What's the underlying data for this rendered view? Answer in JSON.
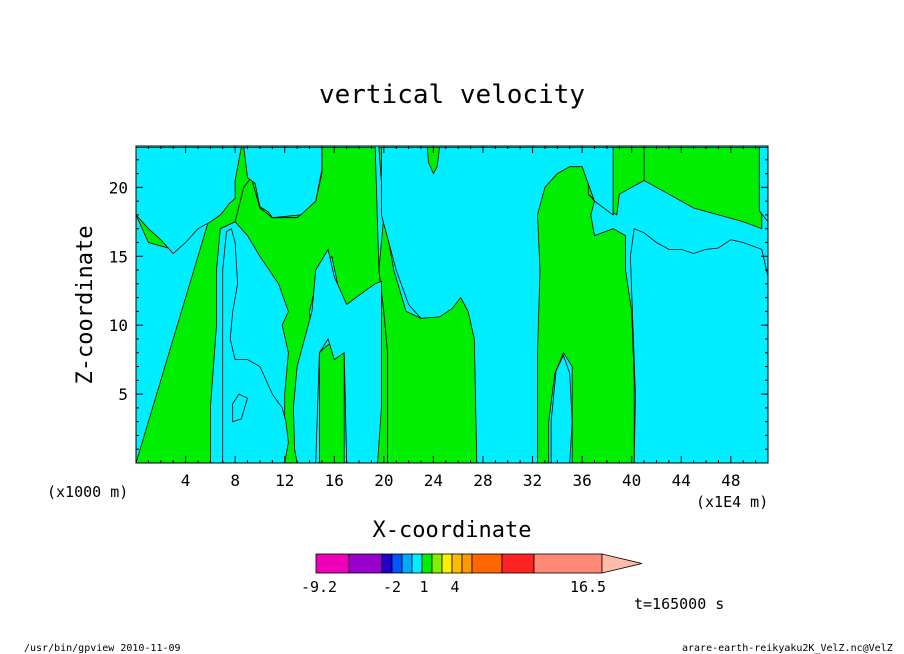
{
  "chart_data": {
    "type": "heatmap",
    "title": "vertical velocity",
    "xlabel": "X-coordinate",
    "ylabel": "Z-coordinate",
    "x_unit_left": "(x1000 m)",
    "x_unit_right": "(x1E4 m)",
    "xlim": [
      0,
      51
    ],
    "ylim": [
      0,
      23
    ],
    "xticks": [
      4,
      8,
      12,
      16,
      20,
      24,
      28,
      32,
      36,
      40,
      44,
      48
    ],
    "yticks": [
      5,
      10,
      15,
      20
    ],
    "grid": false,
    "colors": {
      "cyan": "#00eeff",
      "green": "#00ee00",
      "outline": "#000000"
    },
    "regions": [
      {
        "name": "green",
        "points": [
          [
            0,
            0
          ],
          [
            6,
            0
          ],
          [
            6,
            4
          ],
          [
            6.5,
            10
          ],
          [
            6.5,
            14
          ],
          [
            6.8,
            17
          ],
          [
            8,
            17.5
          ],
          [
            8.7,
            20
          ],
          [
            9.3,
            20.7
          ],
          [
            10,
            18.5
          ],
          [
            11,
            17.8
          ],
          [
            13,
            17.8
          ],
          [
            14.5,
            19
          ],
          [
            15,
            21
          ],
          [
            15,
            22.9
          ],
          [
            0,
            22.9
          ],
          [
            0,
            18
          ],
          [
            1,
            16
          ],
          [
            3,
            15.5
          ],
          [
            5,
            17
          ],
          [
            6,
            18
          ]
        ]
      },
      {
        "name": "green",
        "points": [
          [
            7,
            0
          ],
          [
            12,
            0
          ],
          [
            12,
            5
          ],
          [
            12.3,
            8
          ],
          [
            11.8,
            10
          ],
          [
            12.3,
            11
          ],
          [
            11.5,
            13
          ],
          [
            10,
            15
          ],
          [
            9,
            16.5
          ],
          [
            8.5,
            17
          ],
          [
            8,
            17.5
          ],
          [
            8.7,
            20
          ],
          [
            9.3,
            20.7
          ],
          [
            10,
            18.5
          ],
          [
            11,
            17.8
          ],
          [
            13,
            17.8
          ],
          [
            14.5,
            19
          ],
          [
            15,
            21
          ],
          [
            15,
            22.9
          ],
          [
            19.3,
            22.9
          ],
          [
            19.6,
            14
          ],
          [
            20,
            11
          ],
          [
            20.3,
            8
          ],
          [
            20.3,
            0
          ],
          [
            17,
            0
          ],
          [
            16.8,
            8
          ],
          [
            16.5,
            12
          ],
          [
            15.8,
            15
          ],
          [
            14.8,
            14
          ],
          [
            14,
            11
          ],
          [
            14.3,
            8
          ],
          [
            13.7,
            4
          ],
          [
            13,
            0
          ]
        ]
      },
      {
        "name": "green",
        "points": [
          [
            14.8,
            0
          ],
          [
            16.8,
            0
          ],
          [
            16.8,
            8
          ],
          [
            16.2,
            9
          ],
          [
            15.4,
            8.5
          ],
          [
            14.8,
            8
          ]
        ]
      },
      {
        "name": "green",
        "points": [
          [
            20.3,
            0
          ],
          [
            27.5,
            0
          ],
          [
            27.5,
            7
          ],
          [
            27.3,
            10
          ],
          [
            26.8,
            11
          ],
          [
            26.2,
            12
          ],
          [
            25.5,
            12.3
          ],
          [
            24.5,
            11
          ],
          [
            23,
            10.5
          ],
          [
            21.8,
            11
          ],
          [
            20.8,
            14
          ],
          [
            20,
            18
          ],
          [
            19.6,
            22.9
          ],
          [
            20.5,
            22.9
          ],
          [
            19.6,
            14
          ],
          [
            20,
            11
          ],
          [
            20.3,
            8
          ]
        ]
      },
      {
        "name": "green",
        "points": [
          [
            32.3,
            0
          ],
          [
            33.3,
            0
          ],
          [
            33.3,
            3
          ],
          [
            33.8,
            6.5
          ],
          [
            34.5,
            8
          ],
          [
            35.2,
            7
          ],
          [
            35.2,
            0
          ],
          [
            40.2,
            0
          ],
          [
            40.2,
            6
          ],
          [
            40,
            11
          ],
          [
            39.5,
            14
          ],
          [
            39.5,
            16.5
          ],
          [
            38.5,
            17
          ],
          [
            37,
            16.5
          ],
          [
            36.7,
            18
          ],
          [
            37,
            19
          ],
          [
            36.5,
            19.5
          ],
          [
            37,
            20
          ],
          [
            37,
            21
          ],
          [
            37.5,
            22.9
          ],
          [
            33.4,
            22.9
          ],
          [
            33.4,
            21.5
          ],
          [
            32.5,
            21
          ],
          [
            32.3,
            20
          ]
        ]
      },
      {
        "name": "green",
        "points": [
          [
            36.5,
            22.9
          ],
          [
            36.5,
            19.5
          ],
          [
            37.8,
            18.5
          ],
          [
            38.8,
            18
          ],
          [
            39,
            19.5
          ],
          [
            40,
            20
          ],
          [
            41,
            20.5
          ],
          [
            42,
            21
          ],
          [
            43,
            22.9
          ]
        ]
      },
      {
        "name": "green",
        "points": [
          [
            41,
            22.9
          ],
          [
            41,
            20.5
          ],
          [
            43,
            19.5
          ],
          [
            45,
            18.5
          ],
          [
            47,
            18
          ],
          [
            49,
            17.5
          ],
          [
            50.5,
            17
          ],
          [
            50.5,
            22.9
          ]
        ]
      },
      {
        "name": "cyan",
        "points": [
          [
            7,
            0
          ],
          [
            12,
            0
          ],
          [
            12.3,
            1.5
          ],
          [
            12.1,
            3
          ],
          [
            11.8,
            4
          ],
          [
            11,
            5
          ],
          [
            10.4,
            6.2
          ],
          [
            10,
            7
          ],
          [
            9,
            7.5
          ],
          [
            8,
            7.5
          ],
          [
            7.6,
            9
          ],
          [
            7.8,
            11
          ],
          [
            8.2,
            13
          ],
          [
            8,
            16
          ],
          [
            7.7,
            17
          ],
          [
            7.3,
            16.8
          ],
          [
            7,
            14
          ]
        ]
      },
      {
        "name": "cyan",
        "points": [
          [
            7.8,
            3
          ],
          [
            8.5,
            3.2
          ],
          [
            9,
            4.7
          ],
          [
            8.3,
            5
          ],
          [
            7.8,
            4.3
          ]
        ]
      },
      {
        "name": "cyan",
        "points": [
          [
            13,
            0
          ],
          [
            14.5,
            0
          ],
          [
            14.8,
            8
          ],
          [
            15.5,
            9
          ],
          [
            16,
            7.5
          ],
          [
            16.8,
            8
          ],
          [
            17,
            0
          ],
          [
            19.5,
            0
          ],
          [
            19.8,
            4
          ],
          [
            19.8,
            13.2
          ],
          [
            19.3,
            13
          ],
          [
            18.5,
            12.5
          ],
          [
            17,
            11.5
          ],
          [
            16,
            13.5
          ],
          [
            15.5,
            15.5
          ],
          [
            14.5,
            14
          ],
          [
            14.2,
            11
          ],
          [
            13.6,
            9
          ],
          [
            13,
            7
          ],
          [
            12.7,
            4
          ],
          [
            12.8,
            1
          ]
        ]
      },
      {
        "name": "cyan",
        "points": [
          [
            27.5,
            0
          ],
          [
            32.4,
            0
          ],
          [
            32.4,
            8
          ],
          [
            32.6,
            14
          ],
          [
            32.4,
            18
          ],
          [
            33,
            20
          ],
          [
            34,
            21
          ],
          [
            35,
            21.5
          ],
          [
            36,
            21.5
          ],
          [
            37,
            19
          ],
          [
            38.5,
            18
          ],
          [
            38.5,
            22.9
          ],
          [
            34.7,
            22.9
          ],
          [
            31,
            22.9
          ],
          [
            30,
            22.9
          ],
          [
            26,
            22.9
          ],
          [
            24,
            22.9
          ],
          [
            23.5,
            22.9
          ],
          [
            19.8,
            22.9
          ],
          [
            19.8,
            18
          ],
          [
            21,
            14
          ],
          [
            22,
            11.5
          ],
          [
            23,
            10.5
          ],
          [
            24.5,
            10.6
          ],
          [
            25.5,
            11.2
          ],
          [
            26.2,
            12
          ],
          [
            26.8,
            11
          ],
          [
            27.3,
            9
          ]
        ]
      },
      {
        "name": "cyan",
        "points": [
          [
            33.5,
            0
          ],
          [
            35,
            0
          ],
          [
            35.2,
            3
          ],
          [
            35,
            6.5
          ],
          [
            34.5,
            7.8
          ],
          [
            33.9,
            6.7
          ],
          [
            33.5,
            3
          ]
        ]
      },
      {
        "name": "cyan",
        "points": [
          [
            40.2,
            0
          ],
          [
            51,
            0
          ],
          [
            51,
            13.5
          ],
          [
            50.5,
            15.5
          ],
          [
            49,
            16
          ],
          [
            48,
            16.2
          ],
          [
            47,
            15.6
          ],
          [
            46,
            15.5
          ],
          [
            45,
            15.2
          ],
          [
            44,
            15.5
          ],
          [
            43,
            15.5
          ],
          [
            42,
            16
          ],
          [
            41,
            16.7
          ],
          [
            40.2,
            17
          ],
          [
            39.9,
            15
          ],
          [
            40.1,
            10
          ],
          [
            40.3,
            5
          ]
        ]
      },
      {
        "name": "cyan",
        "points": [
          [
            0,
            22.9
          ],
          [
            0,
            20
          ],
          [
            0,
            18
          ],
          [
            1,
            17
          ],
          [
            2,
            16.2
          ],
          [
            3,
            15.2
          ],
          [
            4,
            16
          ],
          [
            5,
            17
          ],
          [
            6,
            17.5
          ],
          [
            6.8,
            18
          ],
          [
            7,
            18.2
          ],
          [
            7.5,
            18.8
          ],
          [
            8,
            19.2
          ],
          [
            8,
            20.5
          ],
          [
            8.5,
            22.9
          ]
        ]
      },
      {
        "name": "cyan",
        "points": [
          [
            15,
            22.9
          ],
          [
            15,
            21.3
          ],
          [
            14.5,
            19
          ],
          [
            13.3,
            18
          ],
          [
            11,
            17.8
          ],
          [
            10.7,
            18.2
          ],
          [
            10,
            18.6
          ],
          [
            9.6,
            20.3
          ],
          [
            9,
            20.7
          ],
          [
            8.7,
            22.9
          ]
        ]
      },
      {
        "name": "cyan",
        "points": [
          [
            50.3,
            22.9
          ],
          [
            50.3,
            18.3
          ],
          [
            51,
            17.5
          ],
          [
            51,
            22.9
          ]
        ]
      },
      {
        "name": "green",
        "points": [
          [
            23.5,
            22.9
          ],
          [
            23.6,
            21.8
          ],
          [
            24,
            21
          ],
          [
            24.3,
            21.5
          ],
          [
            24.5,
            22.9
          ]
        ]
      }
    ],
    "colorbar": {
      "tick_labels": [
        "-9.2",
        "-2",
        "1",
        "4",
        "16.5"
      ],
      "colors": [
        "#ee00bb",
        "#9900cc",
        "#2200cc",
        "#0055ff",
        "#00aaff",
        "#00eeff",
        "#00ee00",
        "#88ee00",
        "#ffee00",
        "#ffbb00",
        "#ff9900",
        "#ff6600",
        "#ff2222",
        "#ff8877",
        "#ffbbaa"
      ]
    },
    "time_label": "t=165000 s"
  },
  "footer": {
    "left": "/usr/bin/gpview  2010-11-09",
    "right": "arare-earth-reikyaku2K_VelZ.nc@VelZ"
  }
}
